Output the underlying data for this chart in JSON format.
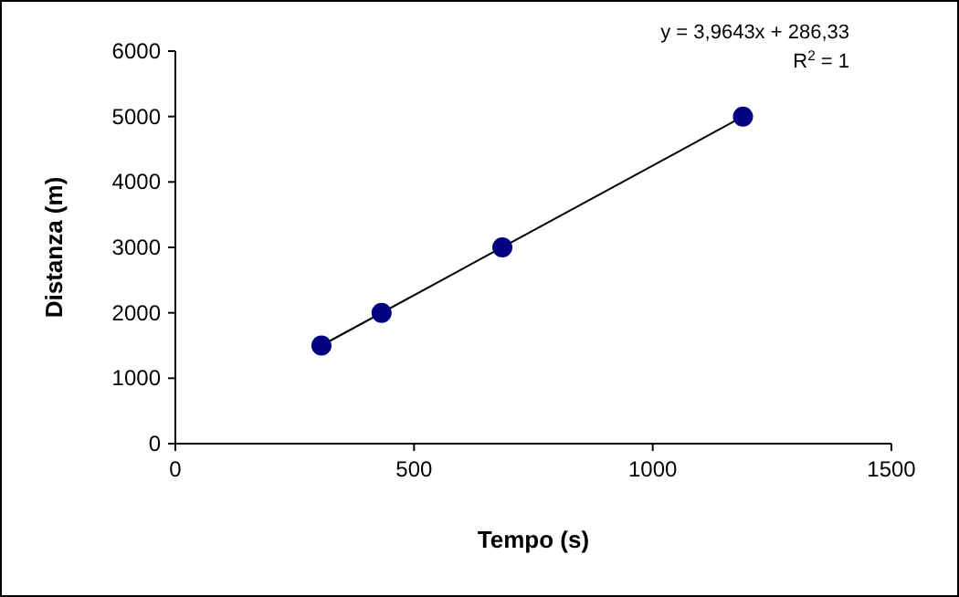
{
  "chart_data": {
    "type": "scatter",
    "xlabel": "Tempo (s)",
    "ylabel": "Distanza (m)",
    "xlim": [
      0,
      1500
    ],
    "xticks": [
      0,
      500,
      1000,
      1500
    ],
    "ylim": [
      0,
      6000
    ],
    "yticks": [
      0,
      1000,
      2000,
      3000,
      4000,
      5000,
      6000
    ],
    "grid": false,
    "marker": "circle",
    "series": [
      {
        "type": "line",
        "color": "#000000",
        "x": [
          306,
          1189
        ],
        "values": [
          1500,
          5000
        ],
        "line_style": "solid",
        "marker": "none"
      },
      {
        "color": "#000080",
        "x": [
          306,
          432,
          685,
          1189
        ],
        "values": [
          1500,
          2000,
          3000,
          5000
        ]
      }
    ],
    "annotations": [
      "y = 3,9643x + 286,33",
      "R$^{2}$ = 1"
    ]
  }
}
